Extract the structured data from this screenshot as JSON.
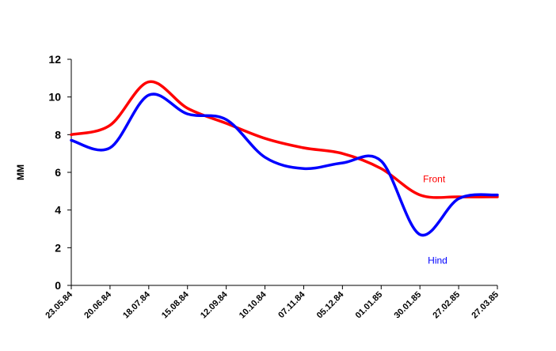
{
  "chart_data": {
    "type": "line",
    "title": "",
    "xlabel": "",
    "ylabel": "MM",
    "ylim": [
      0,
      12
    ],
    "yticks": [
      0,
      2,
      4,
      6,
      8,
      10,
      12
    ],
    "grid": false,
    "legend": "none",
    "categories": [
      "23.05.84",
      "20.06.84",
      "18.07.84",
      "15.08.84",
      "12.09.84",
      "10.10.84",
      "07.11.84",
      "05.12.84",
      "01.01.85",
      "30.01.85",
      "27.02.85",
      "27.03.85"
    ],
    "series": [
      {
        "name": "Front",
        "color": "#ff0000",
        "values": [
          8.0,
          8.5,
          10.8,
          9.4,
          8.6,
          7.8,
          7.3,
          7.0,
          6.2,
          4.8,
          4.7,
          4.7
        ]
      },
      {
        "name": "Hind",
        "color": "#0000ff",
        "values": [
          7.7,
          7.3,
          10.1,
          9.1,
          8.8,
          6.8,
          6.2,
          6.5,
          6.6,
          2.7,
          4.6,
          4.8
        ]
      }
    ]
  }
}
